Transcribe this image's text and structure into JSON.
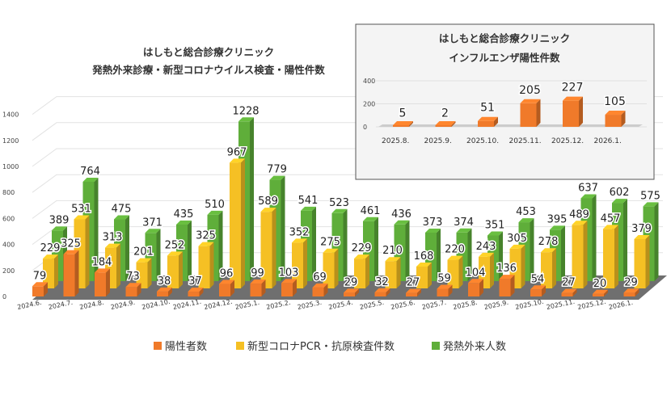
{
  "chart_data": [
    {
      "type": "bar",
      "title": [
        "はしもと総合診療クリニック",
        "発熱外来診療・新型コロナウイルス検査・陽性件数"
      ],
      "categories": [
        "2024.6.",
        "2024.7.",
        "2024.8.",
        "2024.9.",
        "2024.10.",
        "2024.11.",
        "2024.12.",
        "2025.1.",
        "2025.2.",
        "2025.3.",
        "2025.4.",
        "2025.5.",
        "2025.6.",
        "2025.7.",
        "2025.8.",
        "2025.9.",
        "2025.10.",
        "2025.11.",
        "2025.12.",
        "2026.1."
      ],
      "yticks": [
        0,
        200,
        400,
        600,
        800,
        1000,
        1200,
        1400
      ],
      "ylim": [
        0,
        1400
      ],
      "grid": true,
      "legend_position": "bottom",
      "series": [
        {
          "name": "陽性者数",
          "color": "#f07a2a",
          "values": [
            79,
            325,
            184,
            73,
            38,
            37,
            96,
            99,
            103,
            69,
            29,
            32,
            27,
            59,
            104,
            136,
            54,
            27,
            20,
            29
          ]
        },
        {
          "name": "新型コロナPCR・抗原検査件数",
          "color": "#f5c024",
          "values": [
            229,
            531,
            313,
            201,
            252,
            325,
            967,
            589,
            352,
            275,
            229,
            210,
            168,
            220,
            243,
            305,
            278,
            489,
            457,
            379
          ]
        },
        {
          "name": "発熱外来人数",
          "color": "#5fae3a",
          "values": [
            389,
            764,
            475,
            371,
            435,
            510,
            1228,
            779,
            541,
            523,
            461,
            436,
            373,
            374,
            351,
            453,
            395,
            637,
            602,
            575
          ]
        }
      ]
    },
    {
      "type": "bar",
      "title": [
        "はしもと総合診療クリニック",
        "インフルエンザ陽性件数"
      ],
      "categories": [
        "2025.8.",
        "2025.9.",
        "2025.10.",
        "2025.11.",
        "2025.12.",
        "2026.1."
      ],
      "yticks": [
        0,
        200,
        400
      ],
      "ylim": [
        0,
        400
      ],
      "color": "#f07a2a",
      "values": [
        5,
        2,
        51,
        205,
        227,
        105
      ]
    }
  ]
}
